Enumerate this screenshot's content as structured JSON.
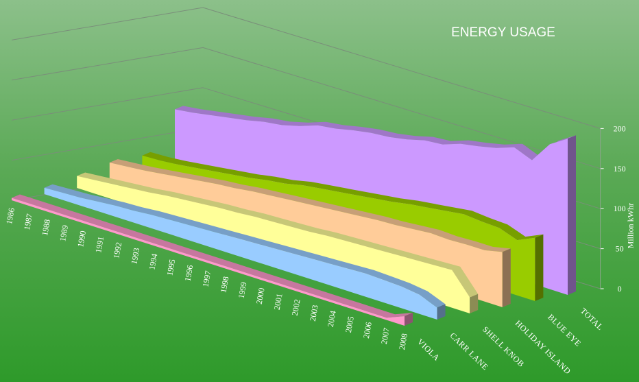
{
  "chart_data": {
    "type": "area",
    "title": "ENERGY USAGE",
    "ylabel": "Million kWhr",
    "ylim": [
      0,
      200
    ],
    "yticks": [
      "0",
      "50",
      "100",
      "150",
      "200"
    ],
    "grid": true,
    "categories": [
      "1986",
      "1987",
      "1988",
      "1989",
      "1990",
      "1991",
      "1992",
      "1993",
      "1994",
      "1995",
      "1996",
      "1997",
      "1998",
      "1999",
      "2000",
      "2001",
      "2002",
      "2003",
      "2004",
      "2005",
      "2006",
      "2007",
      "2008"
    ],
    "series": [
      {
        "name": "VIOLA",
        "color": "#ff99cc",
        "values": [
          3,
          3,
          3,
          3,
          3,
          3,
          3,
          3,
          3,
          3,
          3,
          3,
          3,
          3,
          3,
          3,
          3,
          3,
          3,
          3,
          3,
          3,
          12
        ]
      },
      {
        "name": "CARR LANE",
        "color": "#99ccff",
        "values": [
          8,
          9,
          10,
          12,
          14,
          15,
          17,
          18,
          19,
          20,
          21,
          22,
          23,
          24,
          25,
          26,
          27,
          28,
          29,
          28,
          27,
          24,
          15
        ]
      },
      {
        "name": "SHELL KNOB",
        "color": "#ffff99",
        "values": [
          15,
          17,
          19,
          21,
          23,
          26,
          28,
          30,
          32,
          33,
          35,
          36,
          37,
          38,
          40,
          41,
          42,
          43,
          44,
          45,
          46,
          47,
          20
        ]
      },
      {
        "name": "HOLIDAY ISLAND",
        "color": "#ffcc99",
        "values": [
          24,
          26,
          28,
          31,
          34,
          37,
          40,
          42,
          45,
          47,
          49,
          51,
          53,
          55,
          57,
          59,
          60,
          62,
          64,
          63,
          64,
          64,
          69
        ]
      },
      {
        "name": "BLUE EYE",
        "color": "#99cc00",
        "values": [
          25,
          26,
          28,
          31,
          34,
          37,
          40,
          44,
          47,
          52,
          55,
          58,
          61,
          64,
          67,
          71,
          74,
          77,
          80,
          78,
          77,
          69,
          79
        ]
      },
      {
        "name": "TOTAL",
        "color": "#cc99ff",
        "values": [
          75,
          78,
          82,
          86,
          90,
          95,
          98,
          104,
          112,
          115,
          120,
          124,
          126,
          130,
          136,
          138,
          146,
          150,
          155,
          163,
          154,
          181,
          195
        ]
      }
    ],
    "legend": "none"
  }
}
